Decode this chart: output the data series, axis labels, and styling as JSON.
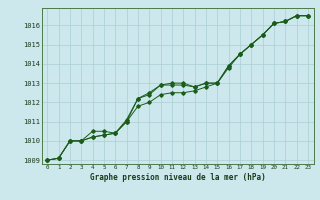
{
  "xlabel": "Graphe pression niveau de la mer (hPa)",
  "ylim": [
    1008.8,
    1016.9
  ],
  "xlim": [
    -0.5,
    23.5
  ],
  "xticks": [
    0,
    1,
    2,
    3,
    4,
    5,
    6,
    7,
    8,
    9,
    10,
    11,
    12,
    13,
    14,
    15,
    16,
    17,
    18,
    19,
    20,
    21,
    22,
    23
  ],
  "yticks": [
    1009,
    1010,
    1011,
    1012,
    1013,
    1014,
    1015,
    1016
  ],
  "bg_color": "#cce8ec",
  "grid_color": "#aacdd4",
  "line_color": "#1a5c1a",
  "line1": [
    1009.0,
    1009.1,
    1010.0,
    1010.0,
    1010.5,
    1010.5,
    1010.4,
    1011.1,
    1012.2,
    1012.5,
    1012.9,
    1013.0,
    1013.0,
    1012.8,
    1013.0,
    1013.0,
    1013.9,
    1014.5,
    1015.0,
    1015.5,
    1016.1,
    1016.2,
    1016.5,
    1016.5
  ],
  "line2": [
    1009.0,
    1009.1,
    1010.0,
    1010.0,
    1010.2,
    1010.3,
    1010.4,
    1011.0,
    1011.8,
    1012.0,
    1012.4,
    1012.5,
    1012.5,
    1012.6,
    1012.8,
    1013.0,
    1013.8,
    1014.5,
    1015.0,
    1015.5,
    1016.1,
    1016.2,
    1016.5,
    1016.5
  ],
  "line3": [
    1009.0,
    1009.1,
    1010.0,
    1010.0,
    1010.2,
    1010.3,
    1010.4,
    1011.0,
    1012.2,
    1012.4,
    1012.9,
    1012.9,
    1012.9,
    1012.8,
    1013.0,
    1013.0,
    1013.9,
    1014.5,
    1015.0,
    1015.5,
    1016.1,
    1016.2,
    1016.5,
    1016.5
  ],
  "hours": [
    0,
    1,
    2,
    3,
    4,
    5,
    6,
    7,
    8,
    9,
    10,
    11,
    12,
    13,
    14,
    15,
    16,
    17,
    18,
    19,
    20,
    21,
    22,
    23
  ],
  "xlabel_fontsize": 5.5,
  "ytick_fontsize": 5.0,
  "xtick_fontsize": 4.2
}
